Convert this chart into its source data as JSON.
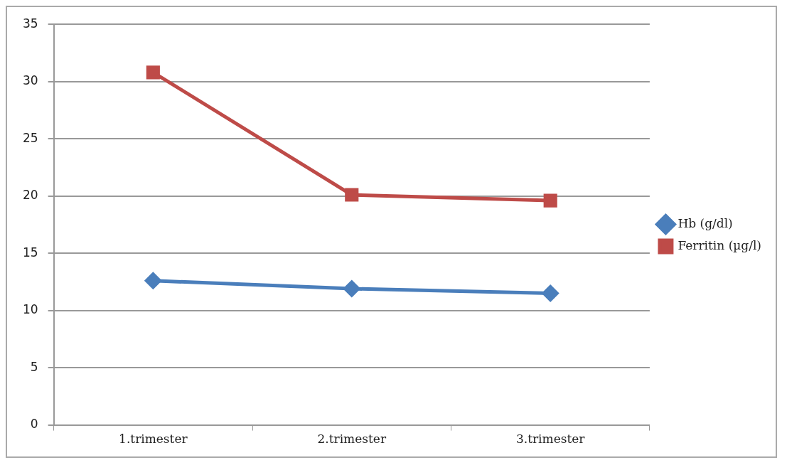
{
  "chart_data": {
    "type": "line",
    "categories": [
      "1.trimester",
      "2.trimester",
      "3.trimester"
    ],
    "series": [
      {
        "name": "Hb (g/dl)",
        "color": "#4a7ebb",
        "values": [
          12.6,
          11.9,
          11.5
        ],
        "marker": "diamond"
      },
      {
        "name": "Ferritin (µg/l)",
        "color": "#be4b48",
        "values": [
          30.8,
          20.1,
          19.6
        ],
        "marker": "square"
      }
    ],
    "ylim": [
      0,
      35
    ],
    "yticks": [
      0,
      5,
      10,
      15,
      20,
      25,
      30,
      35
    ],
    "grid": "y",
    "legend": "right",
    "line_style": "solid"
  }
}
